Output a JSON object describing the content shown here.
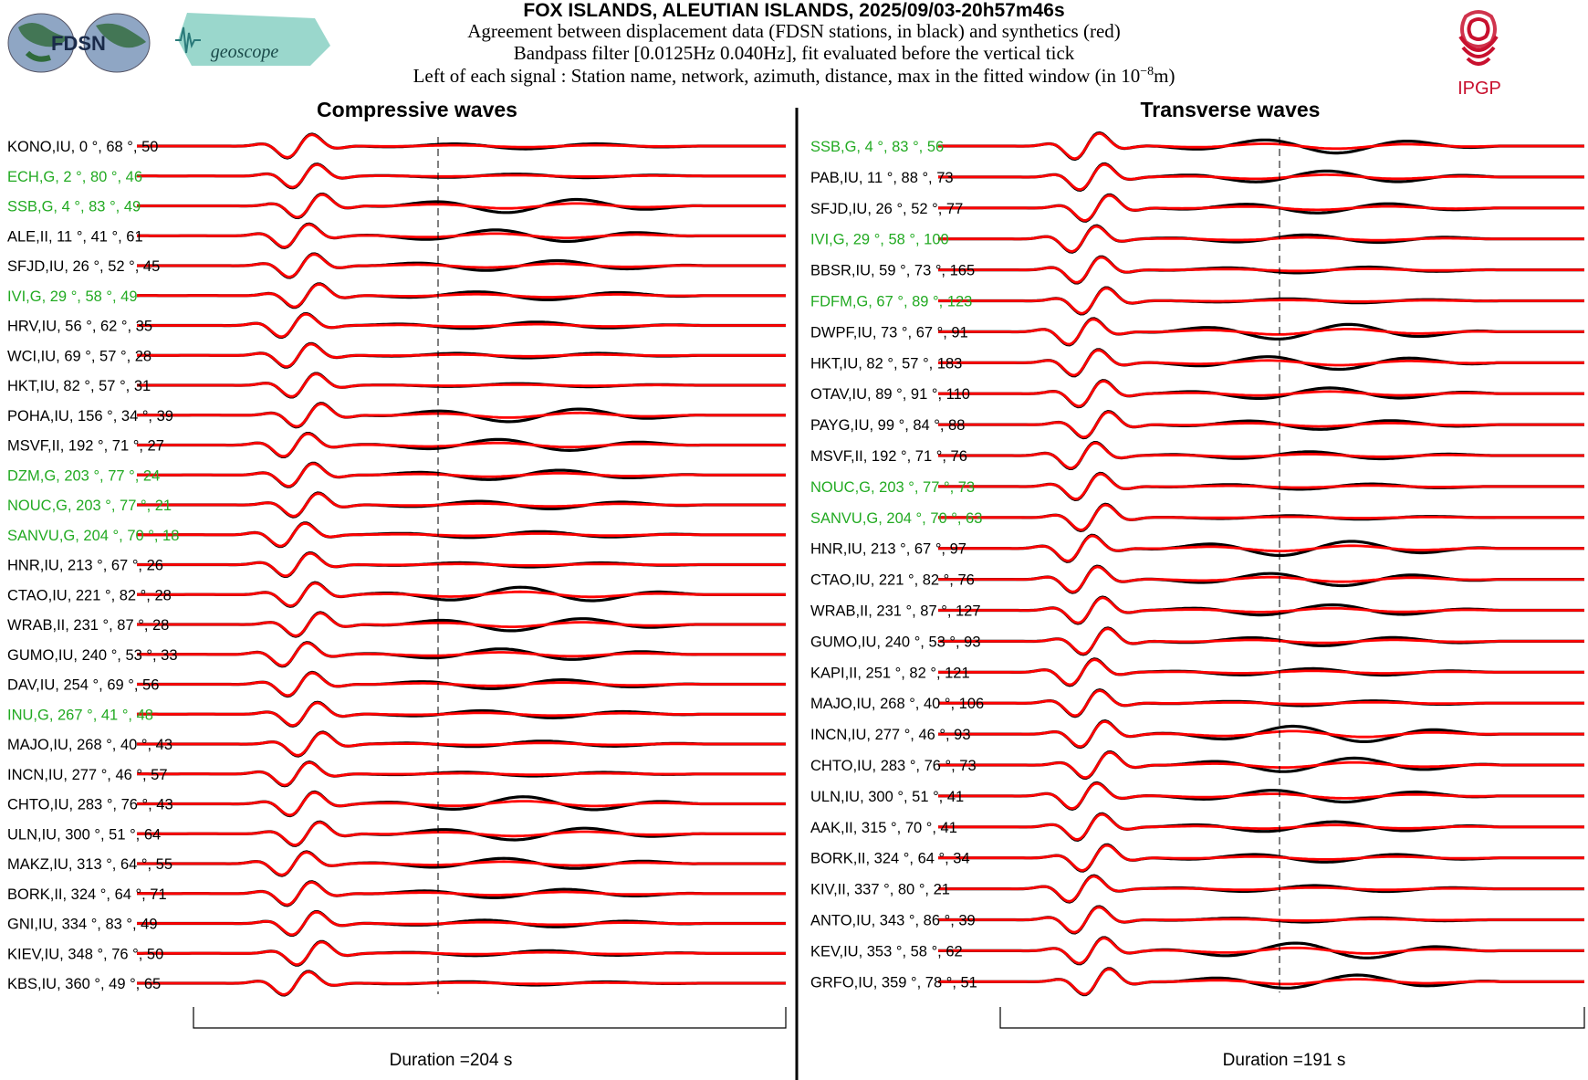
{
  "header": {
    "title": "FOX ISLANDS, ALEUTIAN ISLANDS, 2025/09/03-20h57m46s",
    "line1": "Agreement between displacement data (FDSN stations, in black) and synthetics (red)",
    "line2": "Bandpass filter [0.0125Hz 0.040Hz], fit evaluated before the vertical tick",
    "line3_prefix": "Left of each signal : Station name, network, azimuth, distance, max in the fitted window (in 10",
    "line3_exp": "−8",
    "line3_suffix": "m)"
  },
  "logos": {
    "fdsn": "FDSN",
    "geoscope": "geoscope",
    "ipgp": "IPGP"
  },
  "colors": {
    "data": "#000000",
    "synthetic": "#ff0000",
    "green_station": "#22aa22",
    "ipgp_red": "#c8102e"
  },
  "chart_data": [
    {
      "type": "line",
      "title": "Compressive waves",
      "duration_label": "Duration =204 s",
      "duration_s": 204,
      "series": [
        {
          "label": "KONO,IU, 0  °, 68 °, 50",
          "highlight": false
        },
        {
          "label": "ECH,G, 2  °, 80  °, 46",
          "highlight": true
        },
        {
          "label": "SSB,G, 4  °, 83  °, 49",
          "highlight": true
        },
        {
          "label": "ALE,II, 11  °, 41  °, 61",
          "highlight": false
        },
        {
          "label": "SFJD,IU, 26  °, 52 °, 45",
          "highlight": false
        },
        {
          "label": "IVI,G, 29  °, 58  °, 49",
          "highlight": true
        },
        {
          "label": "HRV,IU, 56  °, 62 °, 35",
          "highlight": false
        },
        {
          "label": "WCI,IU, 69  °, 57 °, 28",
          "highlight": false
        },
        {
          "label": "HKT,IU, 82  °, 57 °, 31",
          "highlight": false
        },
        {
          "label": "POHA,IU, 156  °, 34 °, 39",
          "highlight": false
        },
        {
          "label": "MSVF,II, 192  °, 71 °, 27",
          "highlight": false
        },
        {
          "label": "DZM,G, 203  °, 77  °, 24",
          "highlight": true
        },
        {
          "label": "NOUC,G, 203  °, 77  °, 21",
          "highlight": true
        },
        {
          "label": "SANVU,G, 204  °, 70  °, 18",
          "highlight": true
        },
        {
          "label": "HNR,IU, 213  °, 67 °, 26",
          "highlight": false
        },
        {
          "label": "CTAO,IU, 221  °, 82 °, 28",
          "highlight": false
        },
        {
          "label": "WRAB,II, 231  °, 87 °, 28",
          "highlight": false
        },
        {
          "label": "GUMO,IU, 240  °, 53 °, 33",
          "highlight": false
        },
        {
          "label": "DAV,IU, 254  °, 69 °, 56",
          "highlight": false
        },
        {
          "label": "INU,G, 267  °, 41  °, 48",
          "highlight": true
        },
        {
          "label": "MAJO,IU, 268  °, 40 °, 43",
          "highlight": false
        },
        {
          "label": "INCN,IU, 277  °, 46 °, 57",
          "highlight": false
        },
        {
          "label": "CHTO,IU, 283  °, 76 °, 43",
          "highlight": false
        },
        {
          "label": "ULN,IU, 300  °, 51 °, 64",
          "highlight": false
        },
        {
          "label": "MAKZ,IU, 313  °, 64 °, 55",
          "highlight": false
        },
        {
          "label": "BORK,II, 324  °, 64 °, 71",
          "highlight": false
        },
        {
          "label": "GNI,IU, 334  °, 83 °, 49",
          "highlight": false
        },
        {
          "label": "KIEV,IU, 348  °, 76 °, 50",
          "highlight": false
        },
        {
          "label": "KBS,IU, 360  °, 49 °, 65",
          "highlight": false
        }
      ]
    },
    {
      "type": "line",
      "title": "Transverse waves",
      "duration_label": "Duration =191 s",
      "duration_s": 191,
      "series": [
        {
          "label": "SSB,G, 4  °, 83  °, 56",
          "highlight": true
        },
        {
          "label": "PAB,IU, 11  °, 88 °, 73",
          "highlight": false
        },
        {
          "label": "SFJD,IU, 26  °, 52 °, 77",
          "highlight": false
        },
        {
          "label": "IVI,G, 29  °, 58  °, 100",
          "highlight": true
        },
        {
          "label": "BBSR,IU, 59  °, 73 °, 165",
          "highlight": false
        },
        {
          "label": "FDFM,G, 67  °, 89  °, 123",
          "highlight": true
        },
        {
          "label": "DWPF,IU, 73  °, 67 °, 91",
          "highlight": false
        },
        {
          "label": "HKT,IU, 82  °, 57 °, 183",
          "highlight": false
        },
        {
          "label": "OTAV,IU, 89  °, 91 °, 110",
          "highlight": false
        },
        {
          "label": "PAYG,IU, 99  °, 84 °, 88",
          "highlight": false
        },
        {
          "label": "MSVF,II, 192  °, 71 °, 76",
          "highlight": false
        },
        {
          "label": "NOUC,G, 203  °, 77  °, 73",
          "highlight": true
        },
        {
          "label": "SANVU,G, 204  °, 70  °, 63",
          "highlight": true
        },
        {
          "label": "HNR,IU, 213  °, 67 °, 97",
          "highlight": false
        },
        {
          "label": "CTAO,IU, 221  °, 82 °, 76",
          "highlight": false
        },
        {
          "label": "WRAB,II, 231  °, 87 °, 127",
          "highlight": false
        },
        {
          "label": "GUMO,IU, 240  °, 53 °, 93",
          "highlight": false
        },
        {
          "label": "KAPI,II, 251  °, 82 °, 121",
          "highlight": false
        },
        {
          "label": "MAJO,IU, 268  °, 40 °, 106",
          "highlight": false
        },
        {
          "label": "INCN,IU, 277  °, 46 °, 93",
          "highlight": false
        },
        {
          "label": "CHTO,IU, 283  °, 76 °, 73",
          "highlight": false
        },
        {
          "label": "ULN,IU, 300  °, 51 °, 41",
          "highlight": false
        },
        {
          "label": "AAK,II, 315  °, 70 °, 41",
          "highlight": false
        },
        {
          "label": "BORK,II, 324  °, 64 °, 34",
          "highlight": false
        },
        {
          "label": "KIV,II, 337  °, 80 °, 21",
          "highlight": false
        },
        {
          "label": "ANTO,IU, 343  °, 86 °, 39",
          "highlight": false
        },
        {
          "label": "KEV,IU, 353  °, 58 °, 62",
          "highlight": false
        },
        {
          "label": "GRFO,IU, 359  °, 78 °, 51",
          "highlight": false
        }
      ]
    }
  ]
}
